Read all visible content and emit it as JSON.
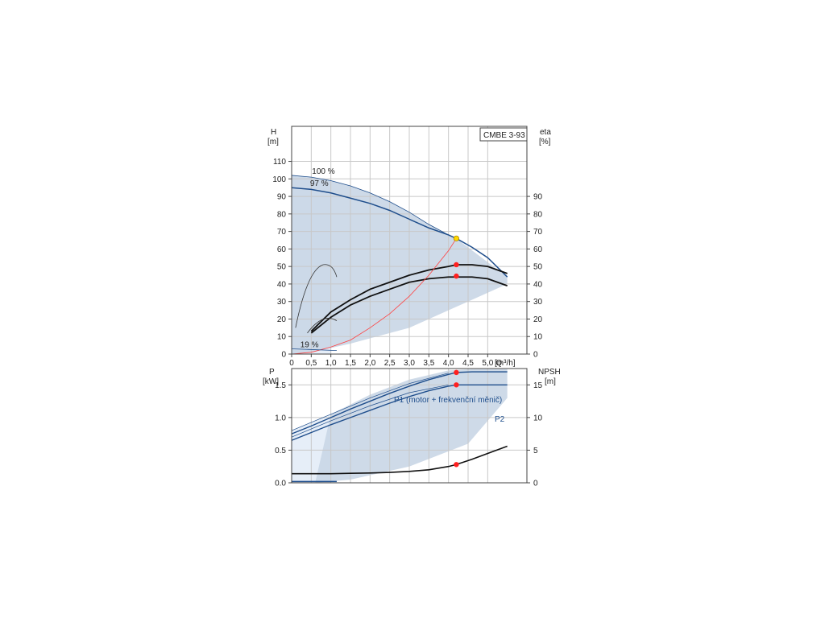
{
  "chart_data": [
    {
      "type": "line",
      "title": "CMBE 3-93",
      "xlabel": "Q [m³/h]",
      "x_unit_label": "[m³/h]",
      "y_left_label": "H",
      "y_left_unit": "[m]",
      "y_right_label": "eta",
      "y_right_unit": "[%]",
      "xlim": [
        0,
        6.0
      ],
      "ylim_left": [
        0,
        130
      ],
      "ylim_right": [
        0,
        130
      ],
      "x_ticks": [
        "0",
        "0,5",
        "1,0",
        "1,5",
        "2,0",
        "2,5",
        "3,0",
        "3,5",
        "4,0",
        "4,5",
        "5,0"
      ],
      "x_tick_values": [
        0,
        0.5,
        1.0,
        1.5,
        2.0,
        2.5,
        3.0,
        3.5,
        4.0,
        4.5,
        5.0
      ],
      "y_left_ticks": [
        0,
        10,
        20,
        30,
        40,
        50,
        60,
        70,
        80,
        90,
        100,
        110
      ],
      "y_right_ticks": [
        0,
        10,
        20,
        30,
        40,
        50,
        60,
        70,
        80,
        90
      ],
      "grid": true,
      "annotations": [
        {
          "text": "100 %",
          "x": 0.52,
          "y": 103
        },
        {
          "text": "97 %",
          "x": 0.47,
          "y": 96
        },
        {
          "text": "19 %",
          "x": 0.22,
          "y": 4
        }
      ],
      "series": [
        {
          "name": "100 %",
          "kind": "H",
          "x": [
            0,
            0.5,
            1.0,
            1.5,
            2.0,
            2.5,
            3.0,
            3.5,
            4.0,
            4.2
          ],
          "y": [
            102,
            101,
            99,
            96,
            92,
            87,
            81,
            74,
            68,
            66
          ]
        },
        {
          "name": "97 %",
          "kind": "H",
          "x": [
            0,
            0.5,
            1.0,
            1.5,
            2.0,
            2.5,
            3.0,
            3.5,
            4.0,
            4.2,
            4.6,
            5.0,
            5.5
          ],
          "y": [
            95,
            94,
            92,
            89,
            86,
            82,
            77,
            72,
            68,
            66,
            61,
            55,
            44
          ]
        },
        {
          "name": "",
          "kind": "eta_p1",
          "x": [
            0.5,
            1.0,
            1.5,
            2.0,
            2.5,
            3.0,
            3.5,
            4.0,
            4.2,
            4.6,
            5.0,
            5.5
          ],
          "y": [
            13,
            24,
            31,
            37,
            41,
            45,
            48,
            50,
            51,
            51,
            50,
            46
          ]
        },
        {
          "name": "",
          "kind": "eta_p2",
          "x": [
            0.5,
            1.0,
            1.5,
            2.0,
            2.5,
            3.0,
            3.5,
            4.0,
            4.2,
            4.6,
            5.0,
            5.5
          ],
          "y": [
            12,
            21,
            28,
            33,
            37,
            41,
            43,
            44,
            44,
            44,
            43,
            39
          ]
        },
        {
          "name": "",
          "kind": "system",
          "x": [
            0,
            0.5,
            1.0,
            1.5,
            2.0,
            2.5,
            3.0,
            3.5,
            4.0,
            4.2
          ],
          "y": [
            0,
            1,
            4,
            8,
            15,
            23,
            33,
            45,
            59,
            66
          ]
        }
      ],
      "operating_points": [
        {
          "x": 4.2,
          "y": 66,
          "color": "#ffd700"
        },
        {
          "x": 4.2,
          "y": 51,
          "color": "#ff2020"
        },
        {
          "x": 4.2,
          "y": 44.5,
          "color": "#ff2020"
        }
      ],
      "colors": {
        "curve_blue": "#1f4e8c",
        "shade": "#c9d6e6",
        "shade_light": "#e6eef8",
        "system": "#ff4040",
        "eta": "#111111"
      }
    },
    {
      "type": "line",
      "xlabel": "",
      "y_left_label": "P",
      "y_left_unit": "[kW]",
      "y_right_label": "NPSH",
      "y_right_unit": "[m]",
      "xlim": [
        0,
        6.0
      ],
      "ylim_left": [
        0,
        1.75
      ],
      "ylim_right": [
        0,
        17.5
      ],
      "y_left_ticks": [
        "0.0",
        "0.5",
        "1.0",
        "1.5"
      ],
      "y_left_tick_values": [
        0,
        0.5,
        1.0,
        1.5
      ],
      "y_right_ticks": [
        0,
        5,
        10,
        15
      ],
      "grid": true,
      "series": [
        {
          "name": "P1 (motor + frekvenční měnič)",
          "kind": "P1",
          "x": [
            0,
            0.5,
            1.0,
            1.5,
            2.0,
            2.5,
            3.0,
            3.5,
            4.0,
            4.2,
            4.6,
            5.0,
            5.5
          ],
          "y": [
            0.75,
            0.87,
            1.0,
            1.13,
            1.25,
            1.37,
            1.48,
            1.58,
            1.66,
            1.69,
            1.7,
            1.7,
            1.7
          ]
        },
        {
          "name": "P2",
          "kind": "P2",
          "x": [
            0,
            0.5,
            1.0,
            1.5,
            2.0,
            2.5,
            3.0,
            3.5,
            4.0,
            4.2,
            4.6,
            5.0,
            5.5
          ],
          "y": [
            0.65,
            0.77,
            0.89,
            1.0,
            1.11,
            1.22,
            1.32,
            1.41,
            1.48,
            1.5,
            1.5,
            1.5,
            1.5
          ]
        },
        {
          "name": "",
          "kind": "NPSH",
          "x": [
            0,
            0.5,
            1.0,
            1.5,
            2.0,
            2.5,
            3.0,
            3.5,
            4.0,
            4.2,
            4.6,
            5.0,
            5.5
          ],
          "y": [
            1.4,
            1.4,
            1.4,
            1.45,
            1.5,
            1.6,
            1.75,
            2.0,
            2.5,
            2.8,
            3.6,
            4.5,
            5.6
          ]
        }
      ],
      "operating_points": [
        {
          "x": 4.2,
          "y": 1.69,
          "color": "#ff2020"
        },
        {
          "x": 4.2,
          "y": 1.5,
          "color": "#ff2020"
        },
        {
          "x": 4.2,
          "y": 0.28,
          "color": "#ff2020"
        }
      ],
      "colors": {
        "curve_blue": "#1f4e8c",
        "npsh": "#111111"
      }
    }
  ]
}
